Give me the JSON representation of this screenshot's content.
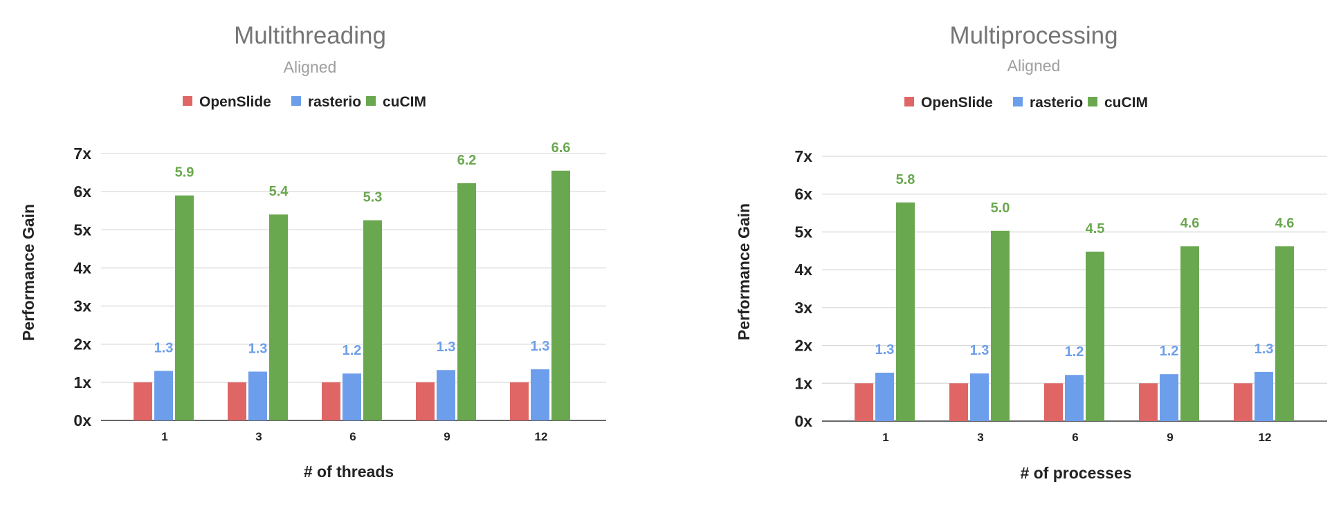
{
  "colors": {
    "OpenSlide": "#e06666",
    "rasterio": "#6d9eeb",
    "cuCIM": "#6aa84f"
  },
  "chart_data": [
    {
      "type": "bar",
      "title": "Multithreading",
      "subtitle": "Aligned",
      "xlabel": "# of threads",
      "ylabel": "Performance Gain",
      "categories": [
        "1",
        "3",
        "6",
        "9",
        "12"
      ],
      "ylim": [
        0,
        7
      ],
      "yticks": [
        "0x",
        "1x",
        "2x",
        "3x",
        "4x",
        "5x",
        "6x",
        "7x"
      ],
      "grid": true,
      "legend": "top",
      "series": [
        {
          "name": "OpenSlide",
          "values": [
            1.0,
            1.0,
            1.0,
            1.0,
            1.0
          ],
          "labels": [
            "",
            "",
            "",
            "",
            ""
          ]
        },
        {
          "name": "rasterio",
          "values": [
            1.3,
            1.28,
            1.23,
            1.32,
            1.34
          ],
          "labels": [
            "1.3",
            "1.3",
            "1.2",
            "1.3",
            "1.3"
          ]
        },
        {
          "name": "cuCIM",
          "values": [
            5.9,
            5.4,
            5.25,
            6.22,
            6.55
          ],
          "labels": [
            "5.9",
            "5.4",
            "5.3",
            "6.2",
            "6.6"
          ]
        }
      ]
    },
    {
      "type": "bar",
      "title": "Multiprocessing",
      "subtitle": "Aligned",
      "xlabel": "# of processes",
      "ylabel": "Performance Gain",
      "categories": [
        "1",
        "3",
        "6",
        "9",
        "12"
      ],
      "ylim": [
        0,
        7
      ],
      "yticks": [
        "0x",
        "1x",
        "2x",
        "3x",
        "4x",
        "5x",
        "6x",
        "7x"
      ],
      "grid": true,
      "legend": "top",
      "series": [
        {
          "name": "OpenSlide",
          "values": [
            1.0,
            1.0,
            1.0,
            1.0,
            1.0
          ],
          "labels": [
            "",
            "",
            "",
            "",
            ""
          ]
        },
        {
          "name": "rasterio",
          "values": [
            1.28,
            1.26,
            1.22,
            1.24,
            1.3
          ],
          "labels": [
            "1.3",
            "1.3",
            "1.2",
            "1.2",
            "1.3"
          ]
        },
        {
          "name": "cuCIM",
          "values": [
            5.78,
            5.03,
            4.48,
            4.62,
            4.62
          ],
          "labels": [
            "5.8",
            "5.0",
            "4.5",
            "4.6",
            "4.6"
          ]
        }
      ]
    }
  ]
}
